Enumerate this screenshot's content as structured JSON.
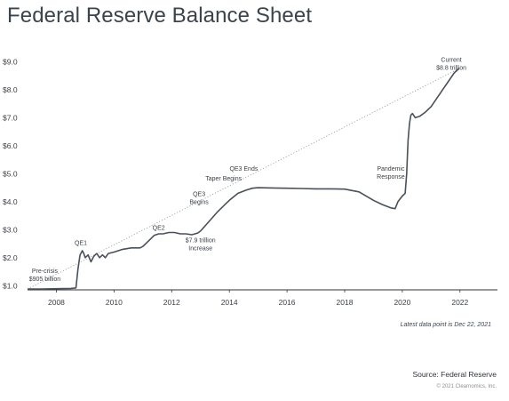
{
  "title": "Federal Reserve Balance Sheet",
  "note": "Latest data point is Dec 22, 2021",
  "source": "Source: Federal Reserve",
  "copyright": "© 2021 Clearnomics, Inc.",
  "colors": {
    "line": "#4a505a",
    "trend": "#9aa0a8",
    "axis": "#333333",
    "text": "#3b4048"
  },
  "chart_data": {
    "type": "line",
    "title": "Federal Reserve Balance Sheet",
    "xlabel": "",
    "ylabel": "",
    "xlim": [
      2007.0,
      2023.3
    ],
    "ylim": [
      0.85,
      9.3
    ],
    "grid": false,
    "x_ticks": [
      2008,
      2010,
      2012,
      2014,
      2016,
      2018,
      2020,
      2022
    ],
    "x_tick_labels": [
      "2008",
      "2010",
      "2012",
      "2014",
      "2016",
      "2018",
      "2020",
      "2022"
    ],
    "y_ticks": [
      1,
      2,
      3,
      4,
      5,
      6,
      7,
      8,
      9
    ],
    "y_tick_labels": [
      "$1.0",
      "$2.0",
      "$3.0",
      "$4.0",
      "$5.0",
      "$6.0",
      "$7.0",
      "$8.0",
      "$9.0"
    ],
    "series": [
      {
        "x": [
          2007.0,
          2007.5,
          2008.0,
          2008.5,
          2008.68,
          2008.75,
          2008.82,
          2008.9,
          2008.95,
          2009.0,
          2009.1,
          2009.2,
          2009.3,
          2009.4,
          2009.5,
          2009.6,
          2009.7,
          2009.8,
          2010.0,
          2010.3,
          2010.6,
          2010.9,
          2011.0,
          2011.2,
          2011.4,
          2011.55,
          2011.7,
          2011.9,
          2012.1,
          2012.3,
          2012.5,
          2012.7,
          2012.9,
          2013.0,
          2013.3,
          2013.6,
          2013.9,
          2014.0,
          2014.3,
          2014.6,
          2014.8,
          2015.0,
          2015.5,
          2016.0,
          2016.5,
          2017.0,
          2017.5,
          2018.0,
          2018.5,
          2019.0,
          2019.3,
          2019.6,
          2019.75,
          2019.85,
          2020.0,
          2020.1,
          2020.15,
          2020.2,
          2020.25,
          2020.3,
          2020.35,
          2020.45,
          2020.6,
          2020.8,
          2021.0,
          2021.2,
          2021.4,
          2021.6,
          2021.8,
          2021.97
        ],
        "values": [
          0.88,
          0.88,
          0.89,
          0.9,
          0.92,
          1.6,
          2.1,
          2.25,
          2.15,
          2.0,
          2.1,
          1.85,
          2.05,
          2.15,
          2.0,
          2.1,
          2.0,
          2.15,
          2.2,
          2.3,
          2.35,
          2.35,
          2.4,
          2.6,
          2.8,
          2.85,
          2.85,
          2.9,
          2.9,
          2.85,
          2.85,
          2.82,
          2.88,
          2.95,
          3.3,
          3.65,
          3.95,
          4.05,
          4.3,
          4.42,
          4.48,
          4.5,
          4.49,
          4.48,
          4.47,
          4.46,
          4.46,
          4.45,
          4.35,
          4.05,
          3.9,
          3.78,
          3.75,
          4.0,
          4.2,
          4.3,
          5.0,
          6.2,
          6.8,
          7.1,
          7.15,
          7.0,
          7.05,
          7.2,
          7.4,
          7.7,
          8.0,
          8.3,
          8.6,
          8.76
        ]
      }
    ],
    "trendline": {
      "x": [
        2007.0,
        2021.97
      ],
      "values": [
        0.88,
        8.76
      ]
    },
    "annotations": [
      {
        "lines": [
          "Pre-crisis",
          "$905 billion"
        ],
        "x": 2007.6,
        "y": 1.45
      },
      {
        "lines": [
          "QE1"
        ],
        "x": 2008.85,
        "y": 2.45
      },
      {
        "lines": [
          "QE2"
        ],
        "x": 2011.55,
        "y": 3.0
      },
      {
        "lines": [
          "QE3",
          "Begins"
        ],
        "x": 2012.95,
        "y": 4.2
      },
      {
        "lines": [
          "Taper Begins"
        ],
        "x": 2013.8,
        "y": 4.75
      },
      {
        "lines": [
          "QE3 Ends"
        ],
        "x": 2014.5,
        "y": 5.1
      },
      {
        "lines": [
          "$7.9 trillion",
          "Increase"
        ],
        "x": 2013.0,
        "y": 2.55
      },
      {
        "lines": [
          "Pandemic",
          "Response"
        ],
        "x": 2019.6,
        "y": 5.1
      },
      {
        "lines": [
          "Current",
          "$8.8 trillion"
        ],
        "x": 2021.7,
        "y": 9.0
      }
    ]
  }
}
